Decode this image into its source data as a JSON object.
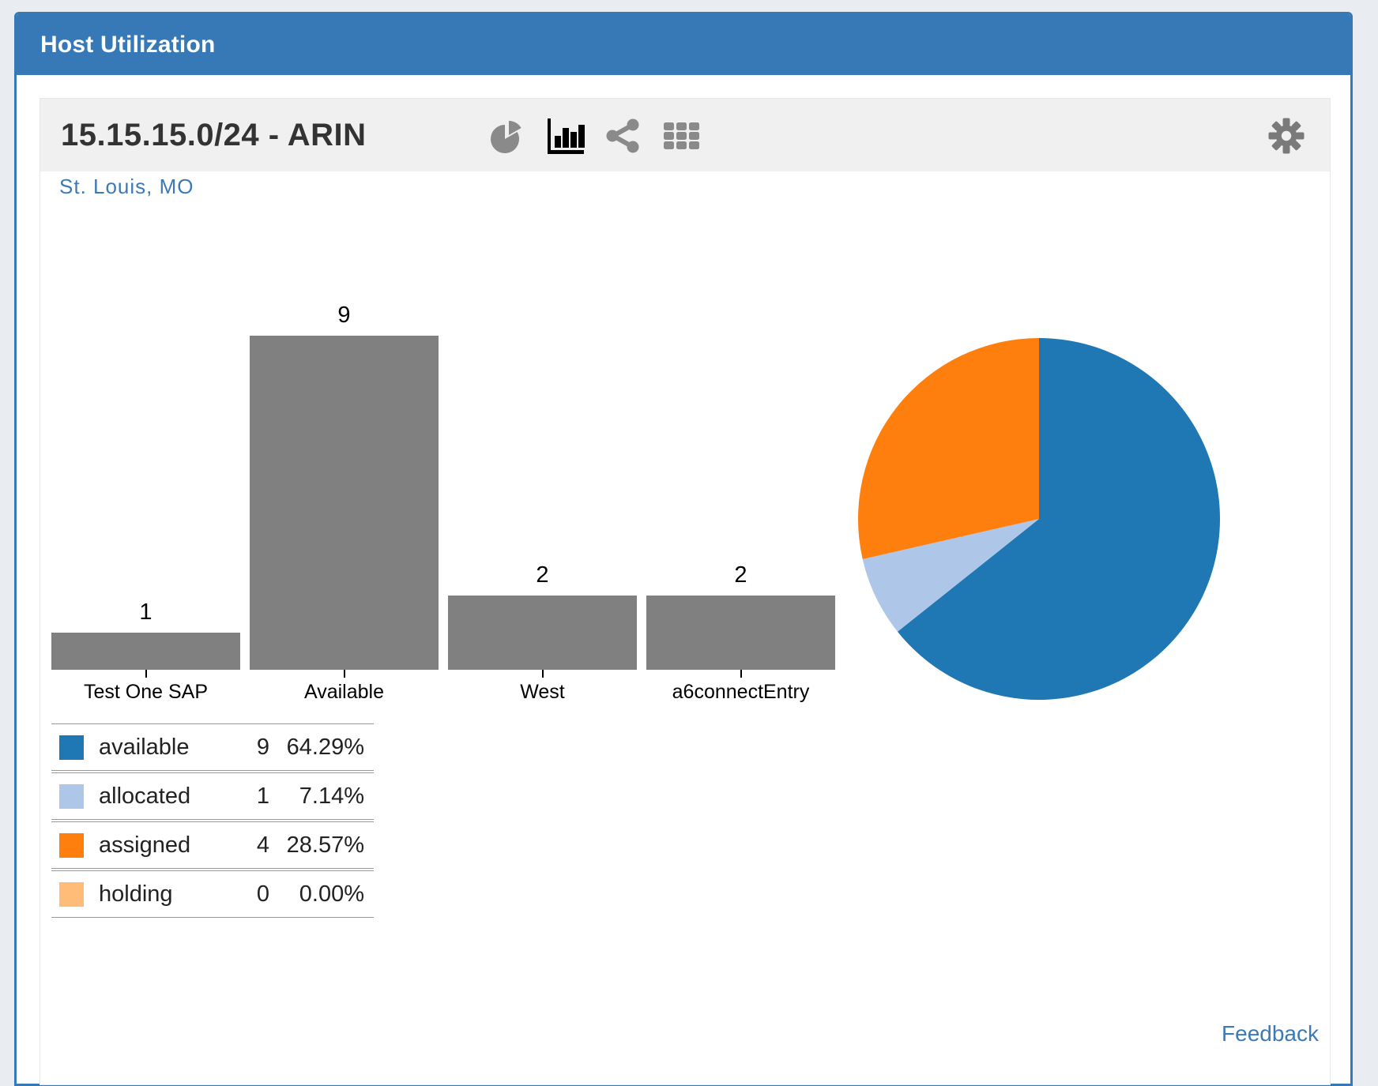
{
  "panel": {
    "title": "Host Utilization"
  },
  "widget": {
    "title": "15.15.15.0/24 - ARIN",
    "location": "St. Louis, MO",
    "feedback_label": "Feedback",
    "toolbar": {
      "icons": [
        "pie-chart-icon",
        "bar-chart-icon",
        "share-icon",
        "grid-icon",
        "gear-icon"
      ],
      "active_icon": "bar-chart-icon"
    }
  },
  "colors": {
    "panel_blue": "#3679b6",
    "toolbar_gray": "#f0f0f0",
    "bar_gray": "#808080",
    "link_blue": "#3d7ab5",
    "icon_gray": "#8a8a8a",
    "icon_active": "#000000"
  },
  "chart_data": [
    {
      "type": "bar",
      "title": "",
      "categories": [
        "Test One SAP",
        "Available",
        "West",
        "a6connectEntry"
      ],
      "values": [
        1,
        9,
        2,
        2
      ],
      "value_labels": [
        "1",
        "9",
        "2",
        "2"
      ],
      "bar_color": "#808080",
      "xlabel": "",
      "ylabel": "",
      "ylim": [
        0,
        9
      ],
      "grid": false,
      "legend_position": "none"
    },
    {
      "type": "pie",
      "title": "",
      "series": [
        {
          "name": "available",
          "value": 9,
          "percent": 64.29,
          "color": "#1f77b4"
        },
        {
          "name": "allocated",
          "value": 1,
          "percent": 7.14,
          "color": "#aec7e8"
        },
        {
          "name": "assigned",
          "value": 4,
          "percent": 28.57,
          "color": "#ff7f0e"
        },
        {
          "name": "holding",
          "value": 0,
          "percent": 0.0,
          "color": "#ffbb78"
        }
      ],
      "start_angle_deg": 0,
      "direction": "clockwise",
      "legend_position": "table-left"
    }
  ],
  "legend": {
    "rows": [
      {
        "label": "available",
        "count": "9",
        "percent": "64.29%",
        "color": "#1f77b4"
      },
      {
        "label": "allocated",
        "count": "1",
        "percent": "7.14%",
        "color": "#aec7e8"
      },
      {
        "label": "assigned",
        "count": "4",
        "percent": "28.57%",
        "color": "#ff7f0e"
      },
      {
        "label": "holding",
        "count": "0",
        "percent": "0.00%",
        "color": "#ffbb78"
      }
    ]
  }
}
